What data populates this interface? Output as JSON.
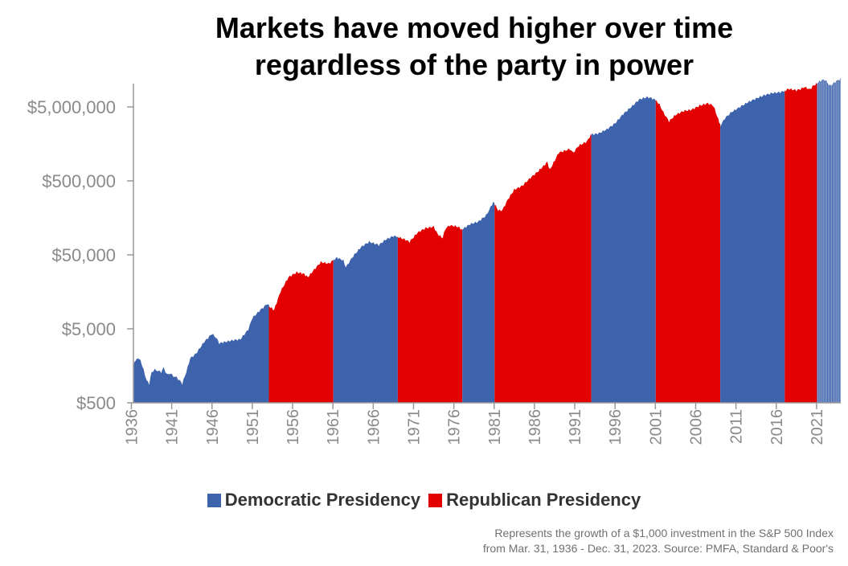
{
  "chart_data": {
    "type": "area",
    "title_lines": [
      "Markets have moved higher over time",
      "regardless of the party in power"
    ],
    "y_scale": "log",
    "ylim": [
      500,
      8000000
    ],
    "xlim": [
      1936.25,
      2024.0
    ],
    "y_ticks": [
      500,
      5000,
      50000,
      500000,
      5000000
    ],
    "y_tick_labels": [
      "$500",
      "$5,000",
      "$50,000",
      "$500,000",
      "$5,000,000"
    ],
    "x_ticks": [
      1936,
      1941,
      1946,
      1951,
      1956,
      1961,
      1966,
      1971,
      1976,
      1981,
      1986,
      1991,
      1996,
      2001,
      2006,
      2011,
      2016,
      2021
    ],
    "x_tick_labels": [
      "1936",
      "1941",
      "1946",
      "1951",
      "1956",
      "1961",
      "1966",
      "1971",
      "1976",
      "1981",
      "1986",
      "1991",
      "1996",
      "2001",
      "2006",
      "2011",
      "2016",
      "2021"
    ],
    "legend": [
      {
        "name": "Democratic Presidency",
        "color": "#3d63ac"
      },
      {
        "name": "Republican Presidency",
        "color": "#e30000"
      }
    ],
    "legend_position": "bottom-center",
    "series": [
      {
        "name": "S&P 500 growth of $1,000",
        "x": [
          1936.25,
          1936.5,
          1937.0,
          1937.25,
          1937.5,
          1937.9,
          1938.2,
          1938.5,
          1938.9,
          1939.3,
          1939.7,
          1940.0,
          1940.4,
          1940.8,
          1941.2,
          1941.6,
          1942.0,
          1942.3,
          1942.8,
          1943.3,
          1944.0,
          1945.0,
          1946.0,
          1946.5,
          1946.9,
          1947.5,
          1948.5,
          1949.5,
          1950.0,
          1950.5,
          1951.0,
          1952.0,
          1952.9,
          1953.1,
          1953.7,
          1954.5,
          1955.5,
          1956.5,
          1957.3,
          1957.9,
          1958.5,
          1959.5,
          1960.5,
          1961.0,
          1961.5,
          1962.3,
          1962.6,
          1963.5,
          1964.5,
          1965.5,
          1966.7,
          1967.5,
          1968.5,
          1969.0,
          1970.0,
          1970.5,
          1971.5,
          1972.5,
          1973.5,
          1974.0,
          1974.6,
          1975.0,
          1975.5,
          1976.5,
          1977.0,
          1978.0,
          1979.0,
          1980.0,
          1980.9,
          1981.5,
          1982.0,
          1982.7,
          1983.5,
          1984.5,
          1985.5,
          1986.5,
          1987.6,
          1987.9,
          1989.0,
          1990.4,
          1990.8,
          1991.5,
          1992.5,
          1993.0,
          1994.0,
          1995.0,
          1996.0,
          1997.0,
          1998.0,
          1999.0,
          2000.0,
          2000.5,
          2001.0,
          2001.5,
          2002.0,
          2002.7,
          2003.5,
          2004.5,
          2005.5,
          2006.5,
          2007.5,
          2008.2,
          2008.8,
          2009.1,
          2009.6,
          2010.5,
          2011.5,
          2012.5,
          2013.5,
          2014.5,
          2015.5,
          2016.5,
          2017.0,
          2017.5,
          2018.5,
          2019.0,
          2019.5,
          2020.2,
          2020.5,
          2021.0,
          2021.5,
          2022.0,
          2022.7,
          2023.3,
          2024.0
        ],
        "values": [
          1600,
          1900,
          2000,
          1700,
          1400,
          1000,
          900,
          1300,
          1400,
          1350,
          1300,
          1500,
          1200,
          1250,
          1150,
          1100,
          1000,
          900,
          1300,
          2000,
          2300,
          3300,
          4300,
          3800,
          3200,
          3300,
          3500,
          3600,
          4200,
          4900,
          7000,
          9000,
          11000,
          10000,
          9000,
          16000,
          25000,
          29000,
          28000,
          25000,
          30000,
          40000,
          38000,
          42000,
          46000,
          42000,
          34000,
          48000,
          64000,
          75000,
          68000,
          80000,
          90000,
          88000,
          80000,
          75000,
          100000,
          115000,
          120000,
          95000,
          85000,
          115000,
          125000,
          120000,
          110000,
          130000,
          140000,
          170000,
          260000,
          200000,
          200000,
          280000,
          380000,
          430000,
          550000,
          680000,
          900000,
          700000,
          1200000,
          1350000,
          1200000,
          1500000,
          1700000,
          2100000,
          2200000,
          2500000,
          3000000,
          4000000,
          5000000,
          6300000,
          6800000,
          6600000,
          6200000,
          5400000,
          4200000,
          3200000,
          3900000,
          4400000,
          4600000,
          5200000,
          5600000,
          5200000,
          3400000,
          2800000,
          3500000,
          4300000,
          5000000,
          5800000,
          6500000,
          7200000,
          7700000,
          7900000,
          8200000,
          8800000,
          8400000,
          8700000,
          9300000,
          8600000,
          9500000,
          10300000,
          11300000,
          11700000,
          9600000,
          10900000,
          12000000
        ]
      }
    ],
    "periods": [
      {
        "party": "Democratic",
        "start": 1936.25,
        "end": 1953.05
      },
      {
        "party": "Republican",
        "start": 1953.05,
        "end": 1961.05
      },
      {
        "party": "Democratic",
        "start": 1961.05,
        "end": 1969.05
      },
      {
        "party": "Republican",
        "start": 1969.05,
        "end": 1977.05
      },
      {
        "party": "Democratic",
        "start": 1977.05,
        "end": 1981.05
      },
      {
        "party": "Republican",
        "start": 1981.05,
        "end": 1993.05
      },
      {
        "party": "Democratic",
        "start": 1993.05,
        "end": 2001.05
      },
      {
        "party": "Republican",
        "start": 2001.05,
        "end": 2009.05
      },
      {
        "party": "Democratic",
        "start": 2009.05,
        "end": 2017.05
      },
      {
        "party": "Republican",
        "start": 2017.05,
        "end": 2021.05
      },
      {
        "party": "Democratic",
        "start": 2021.05,
        "end": 2024.0
      }
    ],
    "colors": {
      "Democratic": "#3d63ac",
      "Republican": "#e30000",
      "axis": "#999999",
      "tick_text": "#8a8a8a"
    }
  },
  "footnote_lines": [
    "Represents the growth of a $1,000 investment in the S&P 500 Index",
    "from Mar. 31, 1936 - Dec. 31, 2023. Source: PMFA, Standard & Poor's"
  ]
}
